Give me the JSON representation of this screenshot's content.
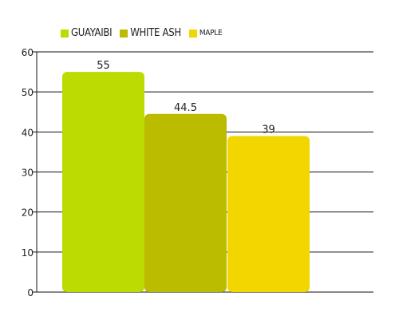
{
  "chart_data": {
    "type": "bar",
    "categories": [
      "GUAYAIBI",
      "WHITE ASH",
      "MAPLE"
    ],
    "values": [
      55,
      44.5,
      39
    ],
    "data_labels": [
      "55",
      "44.5",
      "39"
    ],
    "colors": [
      "#bcdb00",
      "#bbbb00",
      "#f2d600"
    ],
    "ylim": [
      0,
      60
    ],
    "yticks": [
      "0",
      "10",
      "20",
      "30",
      "40",
      "50",
      "60"
    ],
    "title": "",
    "xlabel": "",
    "ylabel": "",
    "grid": true,
    "legend_position": "top-left"
  },
  "legend": [
    {
      "label": "GUAYAIBI",
      "color": "#bcdb00"
    },
    {
      "label": "WHITE ASH",
      "color": "#bbbb00"
    },
    {
      "label": "MAPLE",
      "color": "#f2d600"
    }
  ]
}
